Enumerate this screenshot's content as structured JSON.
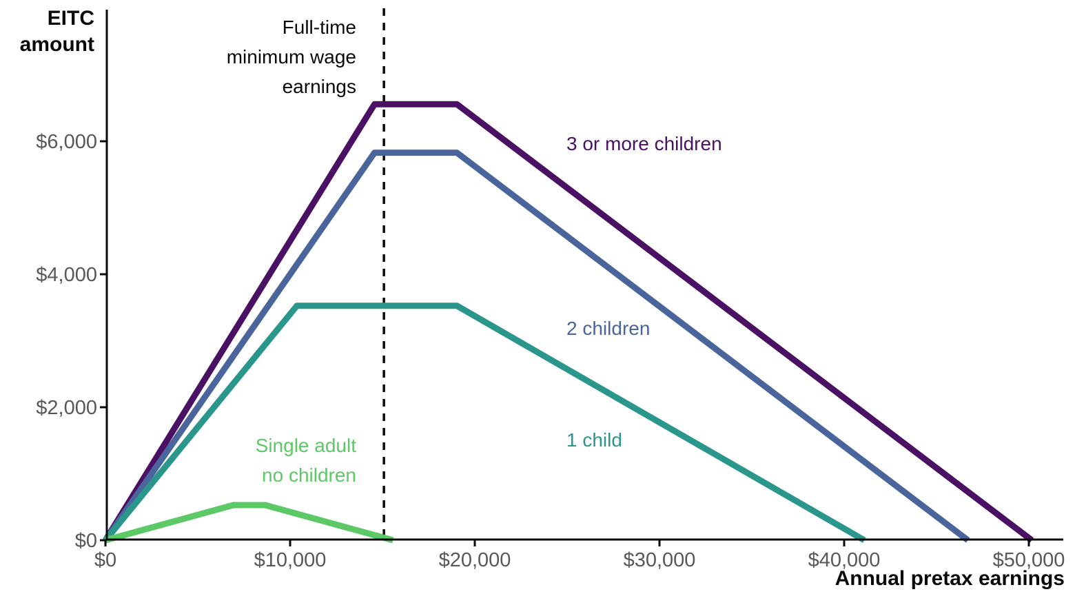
{
  "chart_data": {
    "type": "line",
    "title": "",
    "grid": false,
    "legend_position": "inline-labels-on-plot",
    "x_axis": {
      "label": "Annual pretax earnings",
      "range": [
        0,
        51800
      ],
      "ticks": [
        {
          "value": 0,
          "label": "$0"
        },
        {
          "value": 10000,
          "label": "$10,000"
        },
        {
          "value": 20000,
          "label": "$20,000"
        },
        {
          "value": 30000,
          "label": "$30,000"
        },
        {
          "value": 40000,
          "label": "$40,000"
        },
        {
          "value": 50000,
          "label": "$50,000"
        }
      ]
    },
    "y_axis": {
      "label": "EITC\namount",
      "range": [
        0,
        7950
      ],
      "ticks": [
        {
          "value": 0,
          "label": "$0"
        },
        {
          "value": 2000,
          "label": "$2,000"
        },
        {
          "value": 4000,
          "label": "$4,000"
        },
        {
          "value": 6000,
          "label": "$6,000"
        }
      ]
    },
    "reference_line": {
      "x": 15080,
      "label": "Full-time\nminimum wage\nearnings",
      "style": "dashed",
      "color": "#0a0a0a"
    },
    "series": [
      {
        "name": "3 or more children",
        "color": "#4a1063",
        "points": [
          [
            0,
            0
          ],
          [
            14570,
            6557
          ],
          [
            19030,
            6557
          ],
          [
            50162,
            0
          ]
        ]
      },
      {
        "name": "2 children",
        "color": "#4a649c",
        "points": [
          [
            0,
            0
          ],
          [
            14570,
            5828
          ],
          [
            19030,
            5828
          ],
          [
            46703,
            0
          ]
        ]
      },
      {
        "name": "1 child",
        "color": "#2a968c",
        "points": [
          [
            0,
            0
          ],
          [
            10370,
            3526
          ],
          [
            19030,
            3526
          ],
          [
            41094,
            0
          ]
        ]
      },
      {
        "name": "Single adult\nno children",
        "color": "#5cc966",
        "points": [
          [
            0,
            0
          ],
          [
            6920,
            529
          ],
          [
            8650,
            529
          ],
          [
            15570,
            0
          ]
        ]
      }
    ],
    "colors": {
      "axis": "#0a0a0a",
      "tick_label": "#58585a"
    }
  }
}
